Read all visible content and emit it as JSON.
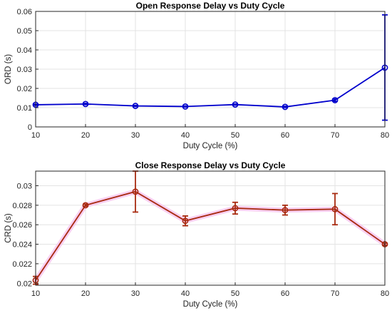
{
  "chart_data": [
    {
      "type": "line",
      "title": "Open Response Delay vs Duty Cycle",
      "xlabel": "Duty Cycle (%)",
      "ylabel": "ORD (s)",
      "xlim": [
        10,
        80
      ],
      "ylim": [
        0,
        0.06
      ],
      "xticks": [
        10,
        20,
        30,
        40,
        50,
        60,
        70,
        80
      ],
      "yticks": [
        0,
        0.01,
        0.02,
        0.03,
        0.04,
        0.05,
        0.06
      ],
      "ytick_labels": [
        "0",
        "0.01",
        "0.02",
        "0.03",
        "0.04",
        "0.05",
        "0.06"
      ],
      "grid": true,
      "color": "#0000cc",
      "series": [
        {
          "x": [
            10,
            20,
            30,
            40,
            50,
            60,
            70,
            80
          ],
          "values": [
            0.0115,
            0.0119,
            0.0109,
            0.0106,
            0.0116,
            0.0104,
            0.0139,
            0.0308
          ],
          "err_low": [
            0.0112,
            0.0116,
            0.0106,
            0.0103,
            0.0113,
            0.0101,
            0.0133,
            0.0035
          ],
          "err_high": [
            0.0118,
            0.0122,
            0.0112,
            0.0109,
            0.0119,
            0.0107,
            0.0145,
            0.0582
          ]
        }
      ]
    },
    {
      "type": "line",
      "title": "Close Response Delay vs Duty Cycle",
      "xlabel": "Duty Cycle (%)",
      "ylabel": "CRD (s)",
      "xlim": [
        10,
        80
      ],
      "ylim": [
        0.0198,
        0.0315
      ],
      "xticks": [
        10,
        20,
        30,
        40,
        50,
        60,
        70,
        80
      ],
      "yticks": [
        0.02,
        0.022,
        0.024,
        0.026,
        0.028,
        0.03
      ],
      "ytick_labels": [
        "0.02",
        "0.022",
        "0.024",
        "0.026",
        "0.028",
        "0.03"
      ],
      "grid": true,
      "color": "#a82a10",
      "band_color": "#f7c8f0",
      "series": [
        {
          "x": [
            10,
            20,
            30,
            40,
            50,
            60,
            70,
            80
          ],
          "values": [
            0.0203,
            0.028,
            0.0294,
            0.0264,
            0.0277,
            0.0275,
            0.0276,
            0.024
          ],
          "err_low": [
            0.0199,
            0.0279,
            0.0273,
            0.0259,
            0.0271,
            0.027,
            0.026,
            0.0239
          ],
          "err_high": [
            0.0207,
            0.0281,
            0.0315,
            0.0269,
            0.0283,
            0.028,
            0.0292,
            0.0241
          ]
        }
      ]
    }
  ]
}
